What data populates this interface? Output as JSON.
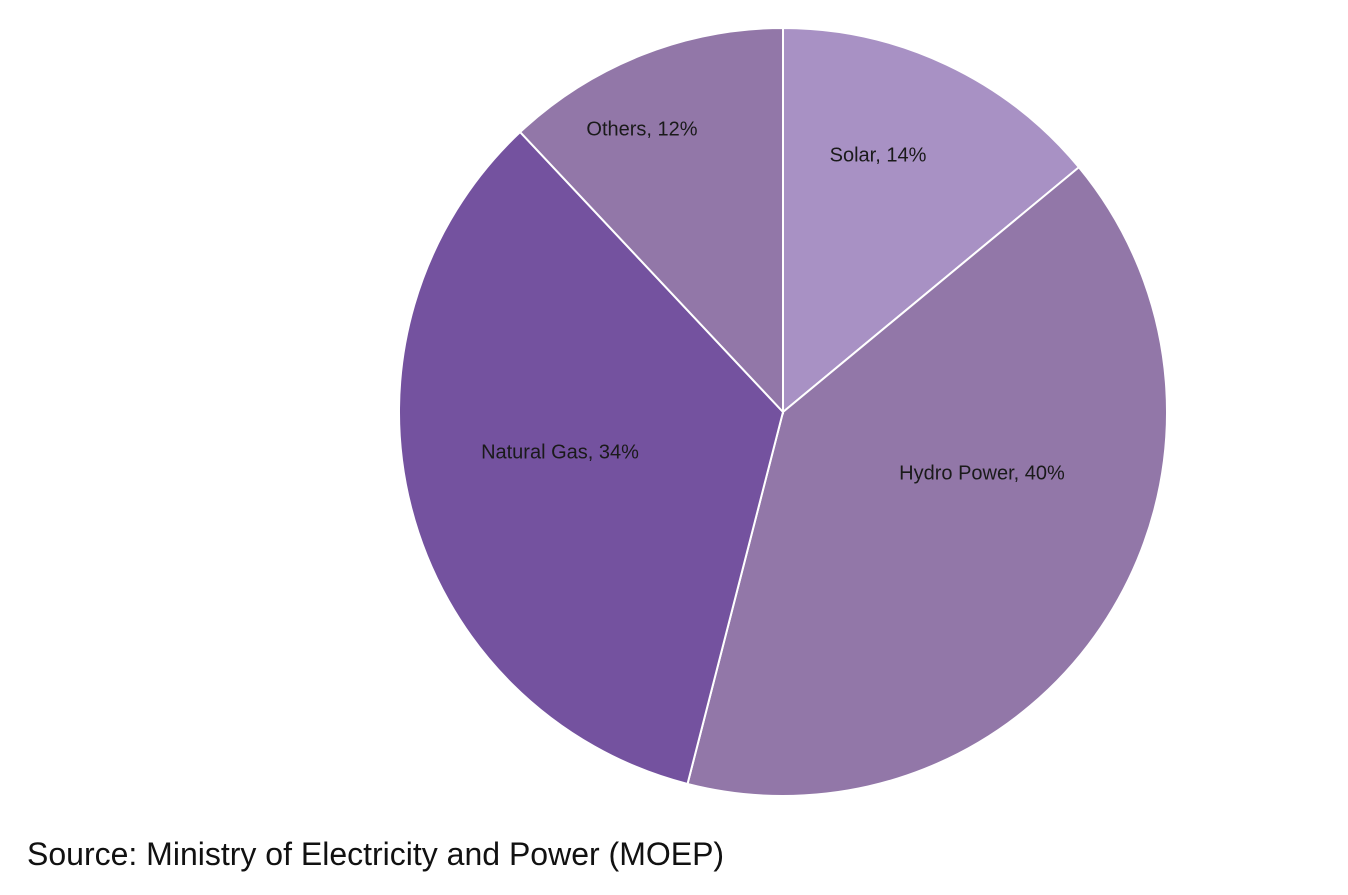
{
  "chart_data": {
    "type": "pie",
    "start_angle_deg": 0,
    "direction": "clockwise",
    "slices": [
      {
        "label": "Solar, 14%",
        "name": "Solar",
        "value": 14,
        "color": "#a891c4"
      },
      {
        "label": "Hydro Power, 40%",
        "name": "Hydro Power",
        "value": 40,
        "color": "#9277a8"
      },
      {
        "label": "Natural Gas, 34%",
        "name": "Natural Gas",
        "value": 34,
        "color": "#74529f"
      },
      {
        "label": "Others, 12%",
        "name": "Others",
        "value": 12,
        "color": "#9277a8"
      }
    ],
    "edge_color": "#ffffff",
    "legend": "none",
    "data_labels": "inside"
  },
  "source": "Source: Ministry of Electricity and Power (MOEP)"
}
